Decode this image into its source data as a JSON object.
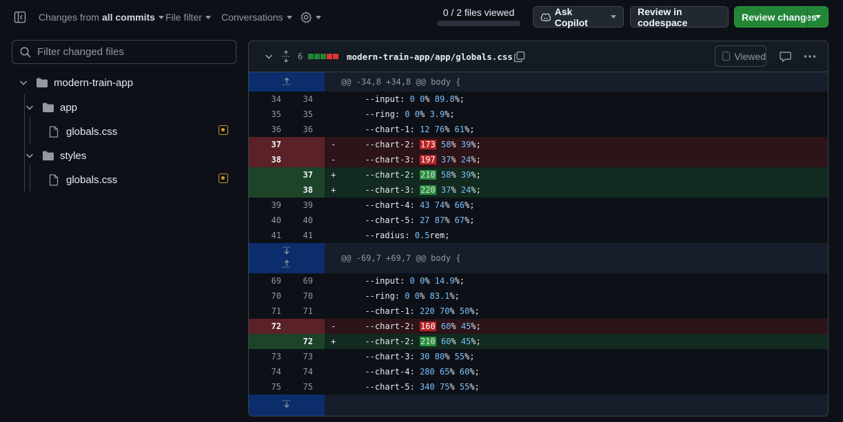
{
  "toolbar": {
    "changes_from_prefix": "Changes from",
    "changes_from_value": "all commits",
    "file_filter": "File filter",
    "conversations": "Conversations",
    "files_viewed": "0 / 2 files viewed",
    "files_viewed_fraction": 0,
    "ask_copilot": "Ask Copilot",
    "review_codespace": "Review in codespace",
    "review_changes": "Review changes"
  },
  "sidebar": {
    "filter_placeholder": "Filter changed files",
    "tree": {
      "root": "modern-train-app",
      "folders": [
        {
          "name": "app",
          "files": [
            "globals.css"
          ]
        },
        {
          "name": "styles",
          "files": [
            "globals.css"
          ]
        }
      ]
    }
  },
  "file": {
    "changes": "6",
    "path": "modern-train-app/app/globals.css",
    "viewed_label": "Viewed"
  },
  "diff": {
    "hunks": [
      {
        "header": "@@ -34,8 +34,8 @@ body {",
        "lines": [
          {
            "old": "34",
            "new": "34",
            "sign": "",
            "prop": "--input:",
            "vals": [
              "0",
              "0",
              "%",
              "89.8",
              "%;"
            ]
          },
          {
            "old": "35",
            "new": "35",
            "sign": "",
            "prop": "--ring:",
            "vals": [
              "0",
              "0",
              "%",
              "3.9",
              "%;"
            ]
          },
          {
            "old": "36",
            "new": "36",
            "sign": "",
            "prop": "--chart-1:",
            "vals": [
              "12",
              "76",
              "%",
              "61",
              "%;"
            ]
          },
          {
            "old": "37",
            "new": "",
            "sign": "-",
            "prop": "--chart-2:",
            "vals": [
              "173",
              "58",
              "%",
              "39",
              "%;"
            ]
          },
          {
            "old": "38",
            "new": "",
            "sign": "-",
            "prop": "--chart-3:",
            "vals": [
              "197",
              "37",
              "%",
              "24",
              "%;"
            ]
          },
          {
            "old": "",
            "new": "37",
            "sign": "+",
            "prop": "--chart-2:",
            "vals": [
              "210",
              "58",
              "%",
              "39",
              "%;"
            ]
          },
          {
            "old": "",
            "new": "38",
            "sign": "+",
            "prop": "--chart-3:",
            "vals": [
              "220",
              "37",
              "%",
              "24",
              "%;"
            ]
          },
          {
            "old": "39",
            "new": "39",
            "sign": "",
            "prop": "--chart-4:",
            "vals": [
              "43",
              "74",
              "%",
              "66",
              "%;"
            ]
          },
          {
            "old": "40",
            "new": "40",
            "sign": "",
            "prop": "--chart-5:",
            "vals": [
              "27",
              "87",
              "%",
              "67",
              "%;"
            ]
          },
          {
            "old": "41",
            "new": "41",
            "sign": "",
            "prop": "--radius:",
            "vals": [
              "0.5",
              "rem;"
            ]
          }
        ]
      },
      {
        "header": "@@ -69,7 +69,7 @@ body {",
        "lines": [
          {
            "old": "69",
            "new": "69",
            "sign": "",
            "prop": "--input:",
            "vals": [
              "0",
              "0",
              "%",
              "14.9",
              "%;"
            ]
          },
          {
            "old": "70",
            "new": "70",
            "sign": "",
            "prop": "--ring:",
            "vals": [
              "0",
              "0",
              "%",
              "83.1",
              "%;"
            ]
          },
          {
            "old": "71",
            "new": "71",
            "sign": "",
            "prop": "--chart-1:",
            "vals": [
              "220",
              "70",
              "%",
              "50",
              "%;"
            ]
          },
          {
            "old": "72",
            "new": "",
            "sign": "-",
            "prop": "--chart-2:",
            "vals": [
              "160",
              "60",
              "%",
              "45",
              "%;"
            ]
          },
          {
            "old": "",
            "new": "72",
            "sign": "+",
            "prop": "--chart-2:",
            "vals": [
              "210",
              "60",
              "%",
              "45",
              "%;"
            ]
          },
          {
            "old": "73",
            "new": "73",
            "sign": "",
            "prop": "--chart-3:",
            "vals": [
              "30",
              "80",
              "%",
              "55",
              "%;"
            ]
          },
          {
            "old": "74",
            "new": "74",
            "sign": "",
            "prop": "--chart-4:",
            "vals": [
              "280",
              "65",
              "%",
              "60",
              "%;"
            ]
          },
          {
            "old": "75",
            "new": "75",
            "sign": "",
            "prop": "--chart-5:",
            "vals": [
              "340",
              "75",
              "%",
              "55",
              "%;"
            ]
          }
        ]
      }
    ]
  },
  "colors": {
    "accent_green": "#238636",
    "deleted_bg": "#2c1418",
    "added_bg": "#122a1f",
    "hunk_gutter": "#0c2d6b",
    "modified_badge": "#d29922"
  }
}
